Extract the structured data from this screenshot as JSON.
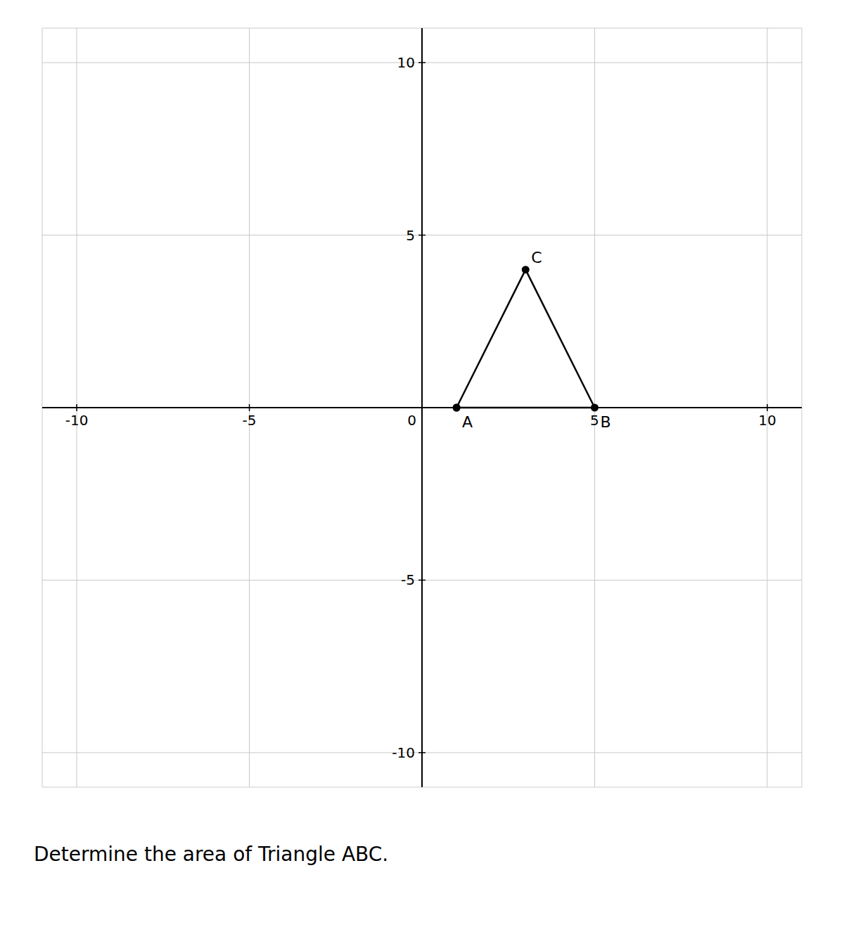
{
  "chart_data": {
    "type": "line",
    "title": "Determine the area of Triangle ABC.",
    "x": [
      1,
      3,
      5,
      1
    ],
    "values": [
      0,
      4,
      0,
      0
    ],
    "color": "#000000",
    "marker": "circle",
    "annotations": [
      {
        "text": "A",
        "x": 1,
        "y": 0
      },
      {
        "text": "B",
        "x": 5,
        "y": 0
      },
      {
        "text": "C",
        "x": 3,
        "y": 4
      }
    ],
    "xlim": [
      -11,
      11
    ],
    "ylim": [
      -11,
      11
    ],
    "xticks": [
      -10,
      -5,
      0,
      5,
      10
    ],
    "yticks": [
      -10,
      -5,
      5,
      10
    ],
    "grid": true
  }
}
